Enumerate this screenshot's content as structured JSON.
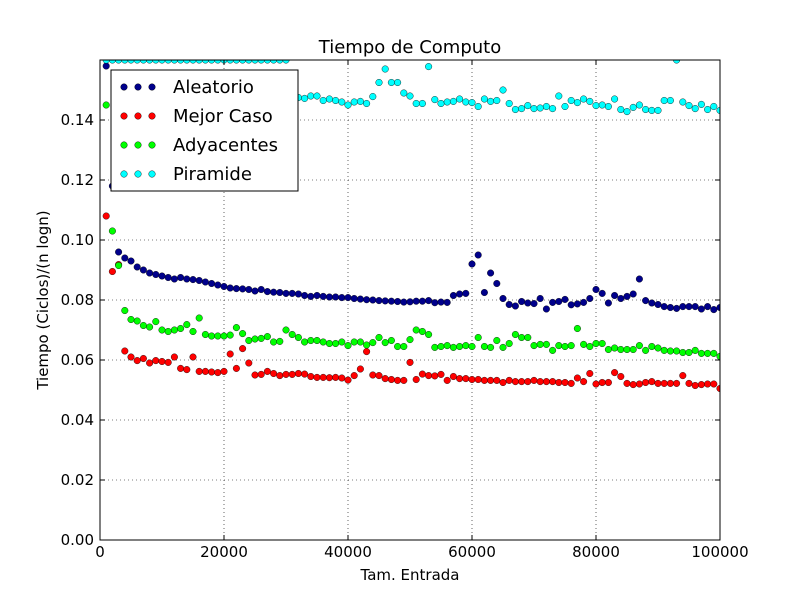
{
  "chart_data": {
    "type": "scatter",
    "title": "Tiempo de Computo",
    "xlabel": "Tam. Entrada",
    "ylabel": "Tiempo (Ciclos)/(n logn)",
    "xlim": [
      0,
      100000
    ],
    "ylim": [
      0,
      0.16
    ],
    "x_ticks": [
      0,
      20000,
      40000,
      60000,
      80000,
      100000
    ],
    "x_tick_labels": [
      "0",
      "20000",
      "40000",
      "60000",
      "80000",
      "100000"
    ],
    "y_ticks": [
      0.0,
      0.02,
      0.04,
      0.06,
      0.08,
      0.1,
      0.12,
      0.14
    ],
    "y_tick_labels": [
      "0.00",
      "0.02",
      "0.04",
      "0.06",
      "0.08",
      "0.10",
      "0.12",
      "0.14"
    ],
    "grid": true,
    "legend_position": "top-left",
    "x": [
      1000,
      2000,
      3000,
      4000,
      5000,
      6000,
      7000,
      8000,
      9000,
      10000,
      11000,
      12000,
      13000,
      14000,
      15000,
      16000,
      17000,
      18000,
      19000,
      20000,
      21000,
      22000,
      23000,
      24000,
      25000,
      26000,
      27000,
      28000,
      29000,
      30000,
      31000,
      32000,
      33000,
      34000,
      35000,
      36000,
      37000,
      38000,
      39000,
      40000,
      41000,
      42000,
      43000,
      44000,
      45000,
      46000,
      47000,
      48000,
      49000,
      50000,
      51000,
      52000,
      53000,
      54000,
      55000,
      56000,
      57000,
      58000,
      59000,
      60000,
      61000,
      62000,
      63000,
      64000,
      65000,
      66000,
      67000,
      68000,
      69000,
      70000,
      71000,
      72000,
      73000,
      74000,
      75000,
      76000,
      77000,
      78000,
      79000,
      80000,
      81000,
      82000,
      83000,
      84000,
      85000,
      86000,
      87000,
      88000,
      89000,
      90000,
      91000,
      92000,
      93000,
      94000,
      95000,
      96000,
      97000,
      98000,
      99000,
      100000
    ],
    "series": [
      {
        "name": "Aleatorio",
        "color": "#00008b",
        "values": [
          0.158,
          0.118,
          0.096,
          0.094,
          0.093,
          0.091,
          0.09,
          0.089,
          0.0885,
          0.088,
          0.0875,
          0.087,
          0.0875,
          0.087,
          0.0868,
          0.0865,
          0.086,
          0.0855,
          0.085,
          0.0845,
          0.084,
          0.0838,
          0.0837,
          0.0835,
          0.083,
          0.0835,
          0.0828,
          0.0826,
          0.0825,
          0.0822,
          0.0822,
          0.082,
          0.0815,
          0.0812,
          0.0815,
          0.0812,
          0.081,
          0.081,
          0.0808,
          0.0808,
          0.0805,
          0.0803,
          0.0801,
          0.08,
          0.0798,
          0.0797,
          0.0796,
          0.0795,
          0.0793,
          0.0794,
          0.0796,
          0.0796,
          0.0798,
          0.0791,
          0.0793,
          0.0792,
          0.0815,
          0.082,
          0.0822,
          0.092,
          0.095,
          0.0825,
          0.089,
          0.0855,
          0.0805,
          0.0785,
          0.078,
          0.0795,
          0.079,
          0.0788,
          0.0805,
          0.077,
          0.0792,
          0.0795,
          0.0802,
          0.0784,
          0.0787,
          0.0792,
          0.0805,
          0.0835,
          0.0822,
          0.079,
          0.0815,
          0.0805,
          0.0812,
          0.082,
          0.087,
          0.0798,
          0.079,
          0.0785,
          0.0778,
          0.0775,
          0.0772,
          0.0778,
          0.0778,
          0.0778,
          0.077,
          0.0778,
          0.0768,
          0.0775
        ]
      },
      {
        "name": "Mejor Caso",
        "color": "#ff0000",
        "values": [
          0.108,
          0.0895,
          0.0918,
          0.063,
          0.061,
          0.0598,
          0.0605,
          0.059,
          0.0598,
          0.0595,
          0.0592,
          0.061,
          0.0572,
          0.0568,
          0.061,
          0.0562,
          0.0562,
          0.056,
          0.0558,
          0.0562,
          0.062,
          0.0572,
          0.0638,
          0.059,
          0.055,
          0.0552,
          0.0562,
          0.0555,
          0.0548,
          0.0552,
          0.0552,
          0.0555,
          0.0553,
          0.0545,
          0.0542,
          0.0542,
          0.0541,
          0.0542,
          0.054,
          0.0533,
          0.0548,
          0.057,
          0.0628,
          0.055,
          0.0548,
          0.0538,
          0.0535,
          0.0532,
          0.0532,
          0.0592,
          0.0535,
          0.0553,
          0.0548,
          0.0547,
          0.0552,
          0.0532,
          0.0545,
          0.0538,
          0.0538,
          0.0535,
          0.0535,
          0.0532,
          0.0532,
          0.0532,
          0.0525,
          0.0532,
          0.0528,
          0.0528,
          0.0528,
          0.0532,
          0.0528,
          0.0528,
          0.0528,
          0.0525,
          0.0525,
          0.0522,
          0.054,
          0.0528,
          0.0555,
          0.052,
          0.0525,
          0.0525,
          0.0558,
          0.0545,
          0.0522,
          0.0518,
          0.052,
          0.0525,
          0.0528,
          0.0522,
          0.0522,
          0.0522,
          0.0522,
          0.0548,
          0.0522,
          0.0515,
          0.0518,
          0.052,
          0.052,
          0.0505
        ]
      },
      {
        "name": "Adyacentes",
        "color": "#00ff00",
        "values": [
          0.145,
          0.103,
          0.0915,
          0.0765,
          0.0735,
          0.073,
          0.0715,
          0.071,
          0.0728,
          0.07,
          0.0695,
          0.07,
          0.0705,
          0.0718,
          0.0695,
          0.074,
          0.0685,
          0.068,
          0.068,
          0.068,
          0.0683,
          0.0708,
          0.0688,
          0.0665,
          0.067,
          0.0672,
          0.0678,
          0.066,
          0.0662,
          0.07,
          0.0685,
          0.0675,
          0.066,
          0.0665,
          0.0665,
          0.066,
          0.0655,
          0.0655,
          0.066,
          0.0648,
          0.066,
          0.066,
          0.065,
          0.0658,
          0.0675,
          0.0658,
          0.0665,
          0.0645,
          0.0645,
          0.0668,
          0.07,
          0.0695,
          0.0685,
          0.0642,
          0.0645,
          0.0648,
          0.0642,
          0.0645,
          0.0648,
          0.0645,
          0.0675,
          0.0645,
          0.0642,
          0.0665,
          0.0642,
          0.0655,
          0.0685,
          0.0675,
          0.0675,
          0.0648,
          0.0652,
          0.0652,
          0.0632,
          0.0648,
          0.0645,
          0.0648,
          0.0705,
          0.0652,
          0.0645,
          0.0655,
          0.0655,
          0.0635,
          0.064,
          0.0635,
          0.0635,
          0.0635,
          0.0648,
          0.0632,
          0.0645,
          0.064,
          0.0632,
          0.063,
          0.063,
          0.0625,
          0.0625,
          0.0632,
          0.0622,
          0.0622,
          0.0622,
          0.0612
        ]
      },
      {
        "name": "Piramide",
        "color": "#00ffff",
        "values": [
          0.16,
          0.16,
          0.16,
          0.16,
          0.16,
          0.16,
          0.16,
          0.16,
          0.16,
          0.16,
          0.16,
          0.16,
          0.16,
          0.16,
          0.16,
          0.16,
          0.16,
          0.16,
          0.16,
          0.16,
          0.16,
          0.16,
          0.16,
          0.16,
          0.16,
          0.16,
          0.16,
          0.16,
          0.16,
          0.16,
          0.147,
          0.1475,
          0.1472,
          0.148,
          0.148,
          0.1465,
          0.147,
          0.1465,
          0.146,
          0.145,
          0.146,
          0.1462,
          0.1455,
          0.1478,
          0.1525,
          0.157,
          0.1525,
          0.1525,
          0.149,
          0.148,
          0.1455,
          0.1455,
          0.1578,
          0.1468,
          0.1455,
          0.146,
          0.1462,
          0.147,
          0.146,
          0.1458,
          0.1445,
          0.147,
          0.1462,
          0.1465,
          0.15,
          0.1455,
          0.1435,
          0.1438,
          0.1448,
          0.1438,
          0.144,
          0.1445,
          0.1438,
          0.148,
          0.1445,
          0.1465,
          0.1458,
          0.147,
          0.1462,
          0.1448,
          0.145,
          0.1445,
          0.147,
          0.1435,
          0.1428,
          0.1442,
          0.145,
          0.1435,
          0.1432,
          0.1432,
          0.1465,
          0.1465,
          0.16,
          0.146,
          0.1448,
          0.1438,
          0.1452,
          0.1435,
          0.1445,
          0.1432
        ]
      }
    ]
  }
}
